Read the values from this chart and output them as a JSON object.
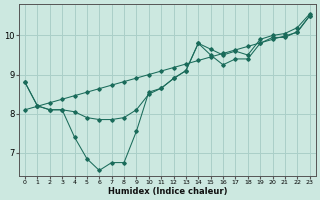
{
  "xlabel": "Humidex (Indice chaleur)",
  "background_color": "#cce8e0",
  "grid_color": "#aacfc8",
  "line_color": "#1a6b5a",
  "x_values": [
    0,
    1,
    2,
    3,
    4,
    5,
    6,
    7,
    8,
    9,
    10,
    11,
    12,
    13,
    14,
    15,
    16,
    17,
    18,
    19,
    20,
    21,
    22,
    23
  ],
  "y_wavy": [
    8.8,
    8.2,
    8.1,
    8.1,
    7.4,
    6.85,
    6.55,
    6.75,
    6.75,
    7.55,
    8.55,
    8.65,
    8.9,
    9.1,
    9.8,
    9.5,
    9.25,
    9.4,
    9.4,
    9.8,
    9.95,
    9.95,
    10.1,
    10.5
  ],
  "y_mean": [
    8.8,
    8.2,
    8.1,
    8.1,
    8.05,
    7.9,
    7.85,
    7.85,
    7.9,
    8.1,
    8.5,
    8.65,
    8.9,
    9.1,
    9.8,
    9.65,
    9.5,
    9.6,
    9.5,
    9.9,
    10.0,
    10.05,
    10.2,
    10.55
  ],
  "y_linear": [
    8.1,
    8.19,
    8.28,
    8.37,
    8.46,
    8.55,
    8.64,
    8.73,
    8.82,
    8.91,
    9.0,
    9.09,
    9.18,
    9.27,
    9.36,
    9.45,
    9.54,
    9.63,
    9.72,
    9.81,
    9.9,
    9.99,
    10.08,
    10.5
  ],
  "ylim": [
    6.4,
    10.8
  ],
  "yticks": [
    7,
    8,
    9,
    10
  ],
  "xticks": [
    0,
    1,
    2,
    3,
    4,
    5,
    6,
    7,
    8,
    9,
    10,
    11,
    12,
    13,
    14,
    15,
    16,
    17,
    18,
    19,
    20,
    21,
    22,
    23
  ]
}
